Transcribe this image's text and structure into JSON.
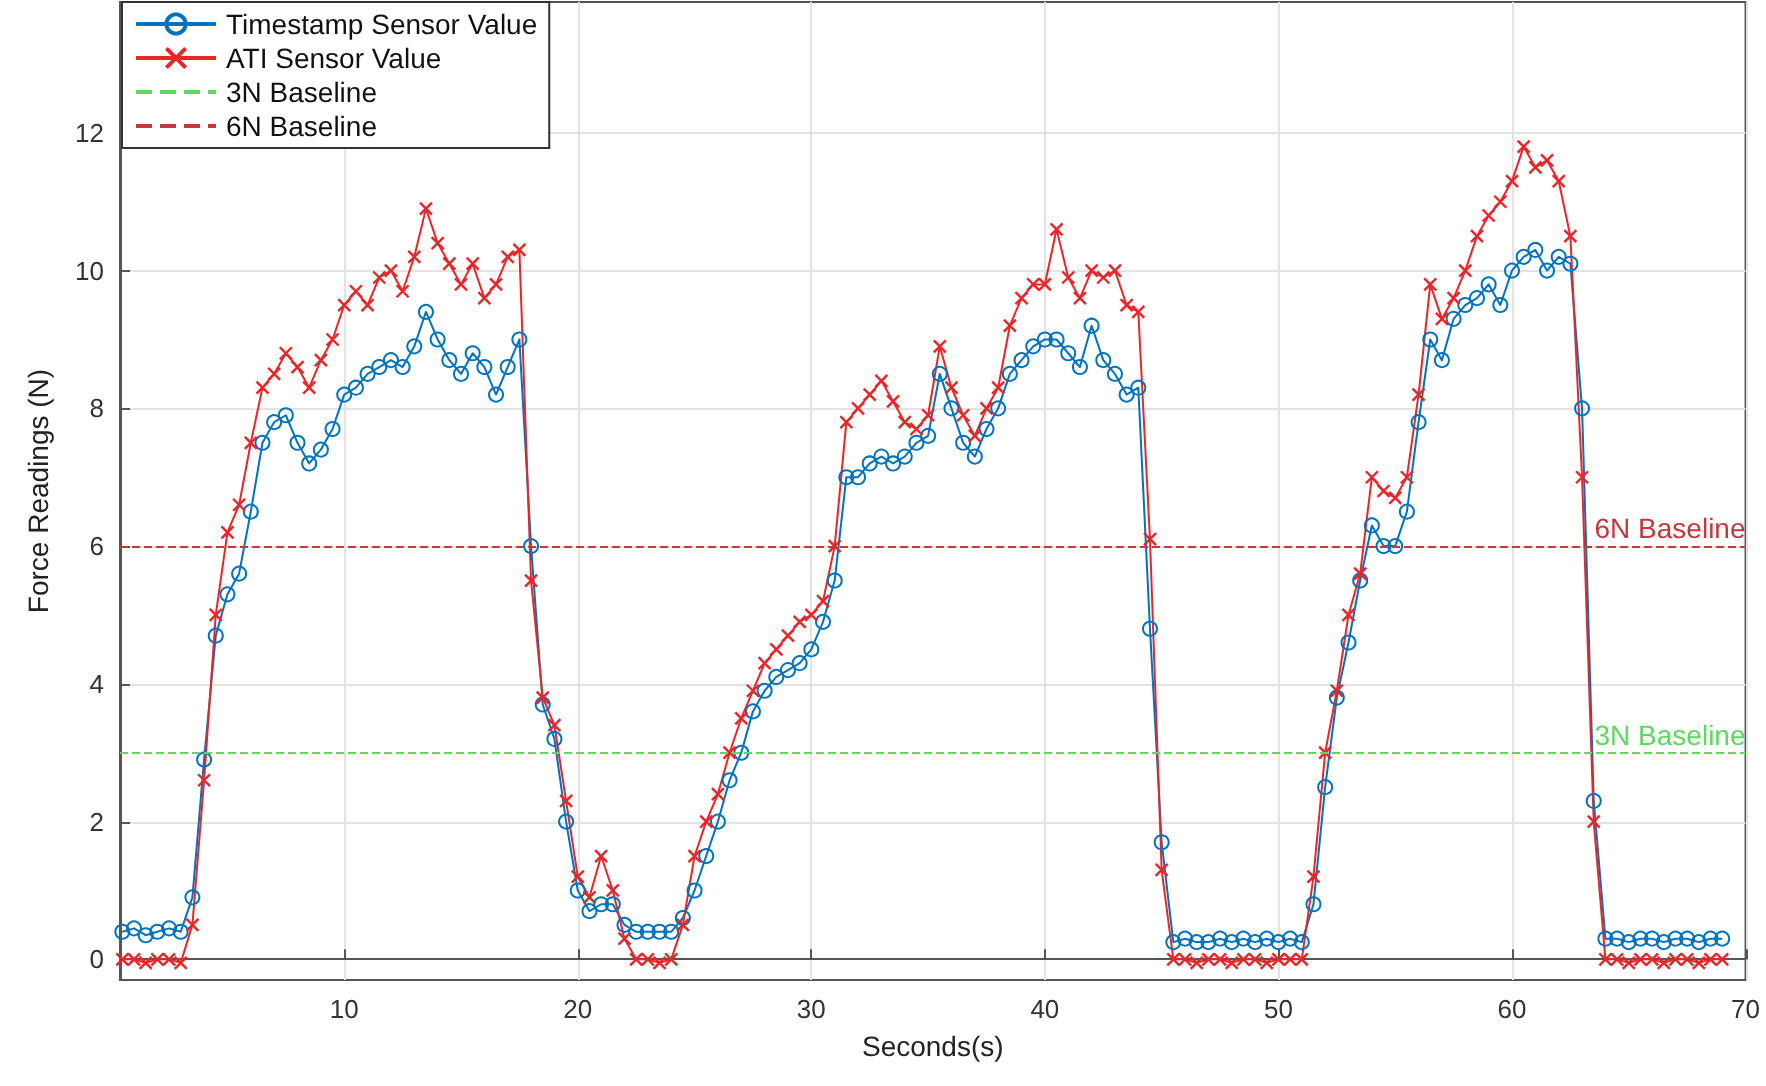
{
  "chart_data": {
    "type": "line",
    "xlabel": "Seconds(s)",
    "ylabel": "Force Readings (N)",
    "x": [
      0.5,
      1,
      1.5,
      2,
      2.5,
      3,
      3.5,
      4,
      4.5,
      5,
      5.5,
      6,
      6.5,
      7,
      7.5,
      8,
      8.5,
      9,
      9.5,
      10,
      10.5,
      11,
      11.5,
      12,
      12.5,
      13,
      13.5,
      14,
      14.5,
      15,
      15.5,
      16,
      16.5,
      17,
      17.5,
      18,
      18.5,
      19,
      19.5,
      20,
      20.5,
      21,
      21.5,
      22,
      22.5,
      23,
      23.5,
      24,
      24.5,
      25,
      25.5,
      26,
      26.5,
      27,
      27.5,
      28,
      28.5,
      29,
      29.5,
      30,
      30.5,
      31,
      31.5,
      32,
      32.5,
      33,
      33.5,
      34,
      34.5,
      35,
      35.5,
      36,
      36.5,
      37,
      37.5,
      38,
      38.5,
      39,
      39.5,
      40,
      40.5,
      41,
      41.5,
      42,
      42.5,
      43,
      43.5,
      44,
      44.5,
      45,
      45.5,
      46,
      46.5,
      47,
      47.5,
      48,
      48.5,
      49,
      49.5,
      50,
      50.5,
      51,
      51.5,
      52,
      52.5,
      53,
      53.5,
      54,
      54.5,
      55,
      55.5,
      56,
      56.5,
      57,
      57.5,
      58,
      58.5,
      59,
      59.5,
      60,
      60.5,
      61,
      61.5,
      62,
      62.5,
      63,
      63.5,
      64,
      64.5,
      65,
      65.5,
      66,
      66.5,
      67,
      67.5,
      68,
      68.5,
      69
    ],
    "series": [
      {
        "name": "Timestamp Sensor Value",
        "color": "#0072bd",
        "marker": "circle",
        "values": [
          0.4,
          0.45,
          0.35,
          0.4,
          0.45,
          0.4,
          0.9,
          2.9,
          4.7,
          5.3,
          5.6,
          6.5,
          7.5,
          7.8,
          7.9,
          7.5,
          7.2,
          7.4,
          7.7,
          8.2,
          8.3,
          8.5,
          8.6,
          8.7,
          8.6,
          8.9,
          9.4,
          9.0,
          8.7,
          8.5,
          8.8,
          8.6,
          8.2,
          8.6,
          9.0,
          6.0,
          3.7,
          3.2,
          2.0,
          1.0,
          0.7,
          0.8,
          0.8,
          0.5,
          0.4,
          0.4,
          0.4,
          0.4,
          0.6,
          1.0,
          1.5,
          2.0,
          2.6,
          3.0,
          3.6,
          3.9,
          4.1,
          4.2,
          4.3,
          4.5,
          4.9,
          5.5,
          7.0,
          7.0,
          7.2,
          7.3,
          7.2,
          7.3,
          7.5,
          7.6,
          8.5,
          8.0,
          7.5,
          7.3,
          7.7,
          8.0,
          8.5,
          8.7,
          8.9,
          9.0,
          9.0,
          8.8,
          8.6,
          9.2,
          8.7,
          8.5,
          8.2,
          8.3,
          4.8,
          1.7,
          0.25,
          0.3,
          0.25,
          0.25,
          0.3,
          0.25,
          0.3,
          0.25,
          0.3,
          0.25,
          0.3,
          0.25,
          0.8,
          2.5,
          3.8,
          4.6,
          5.5,
          6.3,
          6.0,
          6.0,
          6.5,
          7.8,
          9.0,
          8.7,
          9.3,
          9.5,
          9.6,
          9.8,
          9.5,
          10.0,
          10.2,
          10.3,
          10.0,
          10.2,
          10.1,
          8.0,
          2.3,
          0.3,
          0.3,
          0.25,
          0.3,
          0.3,
          0.25,
          0.3,
          0.3,
          0.25,
          0.3,
          0.3
        ]
      },
      {
        "name": "ATI Sensor Value",
        "color": "#e8262a",
        "marker": "cross",
        "values": [
          0.0,
          0.0,
          -0.05,
          0.0,
          0.0,
          -0.05,
          0.5,
          2.6,
          5.0,
          6.2,
          6.6,
          7.5,
          8.3,
          8.5,
          8.8,
          8.6,
          8.3,
          8.7,
          9.0,
          9.5,
          9.7,
          9.5,
          9.9,
          10.0,
          9.7,
          10.2,
          10.9,
          10.4,
          10.1,
          9.8,
          10.1,
          9.6,
          9.8,
          10.2,
          10.3,
          5.5,
          3.8,
          3.4,
          2.3,
          1.2,
          0.9,
          1.5,
          1.0,
          0.3,
          0.0,
          0.0,
          -0.05,
          0.0,
          0.5,
          1.5,
          2.0,
          2.4,
          3.0,
          3.5,
          3.9,
          4.3,
          4.5,
          4.7,
          4.9,
          5.0,
          5.2,
          6.0,
          7.8,
          8.0,
          8.2,
          8.4,
          8.1,
          7.8,
          7.7,
          7.9,
          8.9,
          8.3,
          7.9,
          7.6,
          8.0,
          8.3,
          9.2,
          9.6,
          9.8,
          9.8,
          10.6,
          9.9,
          9.6,
          10.0,
          9.9,
          10.0,
          9.5,
          9.4,
          6.1,
          1.3,
          0.0,
          0.0,
          -0.05,
          0.0,
          0.0,
          -0.05,
          0.0,
          0.0,
          -0.05,
          0.0,
          0.0,
          0.0,
          1.2,
          3.0,
          3.9,
          5.0,
          5.6,
          7.0,
          6.8,
          6.7,
          7.0,
          8.2,
          9.8,
          9.3,
          9.6,
          10.0,
          10.5,
          10.8,
          11.0,
          11.3,
          11.8,
          11.5,
          11.6,
          11.3,
          10.5,
          7.0,
          2.0,
          0.0,
          0.0,
          -0.05,
          0.0,
          0.0,
          -0.05,
          0.0,
          0.0,
          -0.05,
          0.0,
          0.0
        ]
      }
    ],
    "ref_lines": [
      {
        "axis": "y",
        "value": 3,
        "label": "3N Baseline",
        "color": "#5fd85f",
        "line_style": "dashed"
      },
      {
        "axis": "y",
        "value": 6,
        "label": "6N Baseline",
        "color": "#c0393f",
        "line_style": "dashed"
      }
    ],
    "xlim": [
      0.4,
      70
    ],
    "xticks": [
      10,
      20,
      30,
      40,
      50,
      60,
      70
    ],
    "ylim": [
      -0.3,
      13.9
    ],
    "yticks": [
      0,
      2,
      4,
      6,
      8,
      10,
      12
    ],
    "grid": true,
    "legend": "top left"
  }
}
